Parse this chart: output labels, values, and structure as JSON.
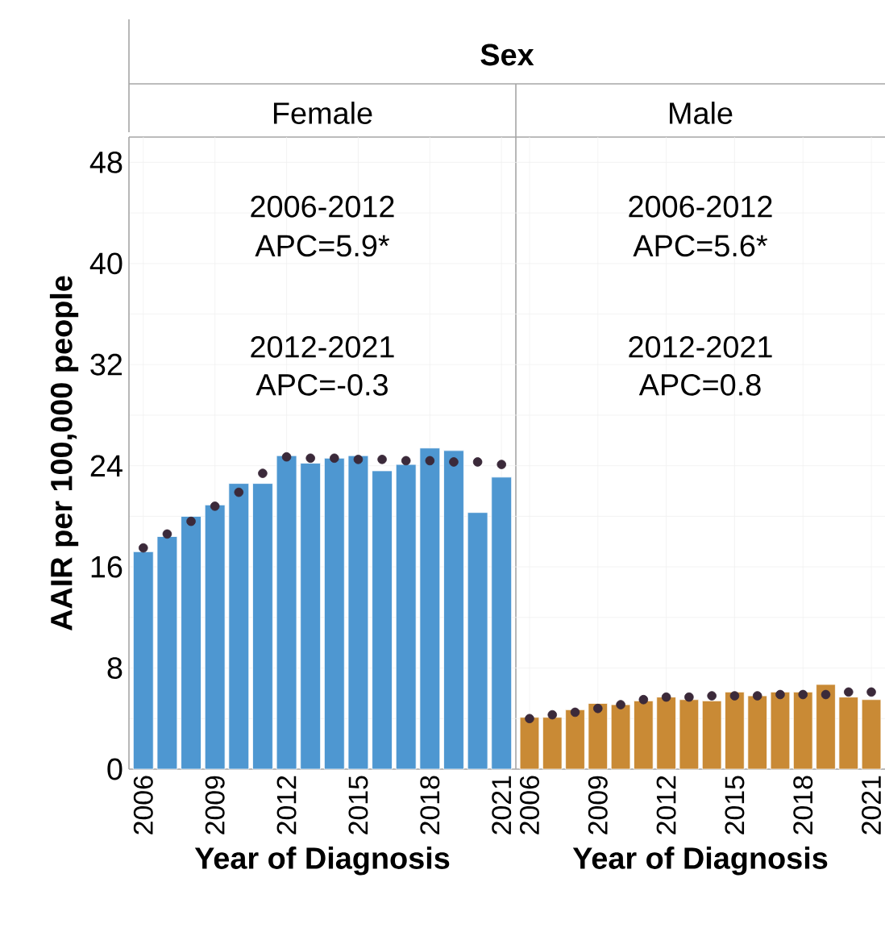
{
  "chart_data": [
    {
      "type": "bar",
      "title": "Female",
      "xlabel": "Year of Diagnosis",
      "ylabel": "AAIR per 100,000 people",
      "categories": [
        "2006",
        null,
        null,
        "2009",
        null,
        null,
        "2012",
        null,
        null,
        "2015",
        null,
        null,
        "2018",
        null,
        null,
        "2021"
      ],
      "series": [
        {
          "color": "#4e97d1",
          "values": [
            17.2,
            18.4,
            20.0,
            20.9,
            22.6,
            22.6,
            24.8,
            24.2,
            24.6,
            24.8,
            23.6,
            24.1,
            25.4,
            25.2,
            20.3,
            23.1
          ]
        },
        {
          "type": "scatter",
          "color": "#3b2a3a",
          "marker": "circle",
          "values": [
            17.5,
            18.6,
            19.6,
            20.8,
            21.9,
            23.4,
            24.7,
            24.6,
            24.6,
            24.5,
            24.5,
            24.4,
            24.4,
            24.3,
            24.3,
            24.1
          ]
        }
      ],
      "ylim": [
        0,
        50
      ],
      "yticks": [
        0,
        8,
        16,
        24,
        32,
        40,
        48
      ],
      "grid": true,
      "annotations": [
        "Sex",
        "2006-2012",
        "APC=5.9*",
        "2012-2021",
        "APC=-0.3"
      ]
    },
    {
      "type": "bar",
      "title": "Male",
      "xlabel": "Year of Diagnosis",
      "categories": [
        "2006",
        null,
        null,
        "2009",
        null,
        null,
        "2012",
        null,
        null,
        "2015",
        null,
        null,
        "2018",
        null,
        null,
        "2021"
      ],
      "series": [
        {
          "color": "#c98a35",
          "values": [
            4.1,
            4.1,
            4.7,
            5.2,
            5.1,
            5.4,
            5.7,
            5.5,
            5.4,
            6.1,
            5.8,
            6.1,
            6.1,
            6.7,
            5.7,
            5.5
          ]
        },
        {
          "type": "scatter",
          "color": "#3b2a3a",
          "marker": "circle",
          "values": [
            4.0,
            4.3,
            4.5,
            4.8,
            5.1,
            5.5,
            5.7,
            5.7,
            5.8,
            5.8,
            5.8,
            5.9,
            5.9,
            5.9,
            6.1,
            6.1
          ]
        }
      ],
      "ylim": [
        0,
        50
      ],
      "yticks": [
        0,
        8,
        16,
        24,
        32,
        40,
        48
      ],
      "grid": true,
      "tick_labels": "x",
      "annotations": [
        "2006-2012",
        "APC=5.6*",
        "2012-2021",
        "APC=0.8"
      ]
    }
  ]
}
